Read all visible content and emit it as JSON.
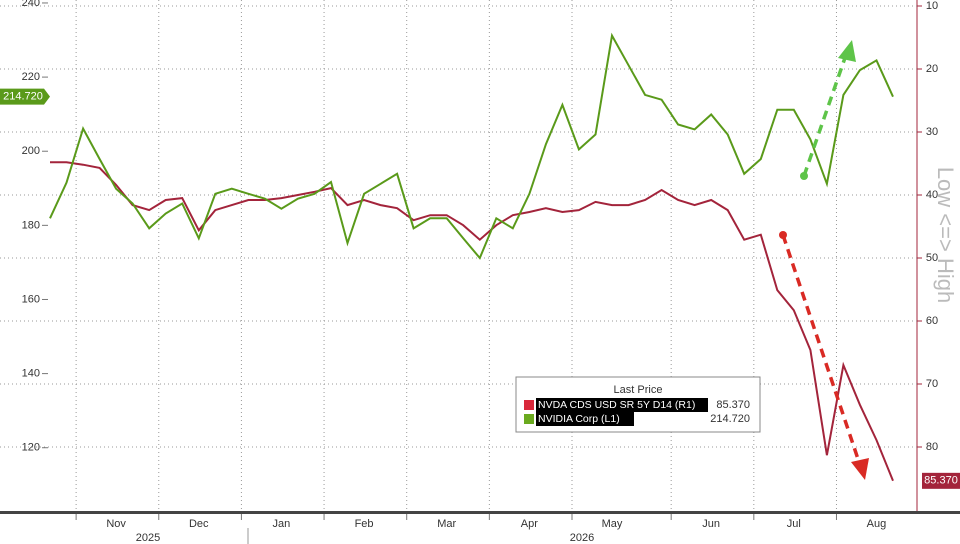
{
  "chart_data": {
    "type": "line",
    "categories": [
      null,
      null,
      null,
      null,
      "Nov",
      null,
      null,
      null,
      null,
      "Dec",
      null,
      null,
      null,
      null,
      "Jan",
      null,
      null,
      null,
      null,
      "Feb",
      null,
      null,
      null,
      null,
      "Mar",
      null,
      null,
      null,
      null,
      "Apr",
      null,
      null,
      null,
      null,
      "May",
      null,
      null,
      null,
      null,
      null,
      "Jun",
      null,
      null,
      null,
      null,
      "Jul",
      null,
      null,
      null,
      null,
      "Aug",
      null
    ],
    "x_years": [
      "2025",
      "2026"
    ],
    "series": [
      {
        "name": "NVDA CDS USD SR 5Y D14  (R1)",
        "color": "#a3243b",
        "swatch": "#d9283b",
        "axis": "y2",
        "last_value_label": "85.370",
        "values": [
          34.8,
          34.8,
          35.2,
          35.7,
          38.4,
          41.6,
          42.4,
          40.8,
          40.5,
          45.6,
          42.4,
          41.6,
          40.8,
          40.8,
          40.5,
          40.0,
          39.5,
          38.9,
          41.6,
          40.8,
          41.6,
          42.1,
          44.0,
          43.2,
          43.2,
          44.8,
          47.1,
          44.8,
          43.2,
          42.7,
          42.1,
          42.7,
          42.4,
          41.1,
          41.6,
          41.6,
          40.8,
          39.2,
          40.8,
          41.6,
          40.8,
          42.4,
          47.1,
          46.3,
          55.1,
          58.3,
          64.6,
          81.3,
          67.0,
          73.3,
          78.9,
          85.37
        ]
      },
      {
        "name": "NVIDIA Corp  (L1)",
        "color": "#5a9a1a",
        "swatch": "#6aaa1f",
        "axis": "y",
        "last_value_label": "214.720",
        "values": [
          181.9,
          191.5,
          206.1,
          197.9,
          189.9,
          185.9,
          179.2,
          183.2,
          185.9,
          176.5,
          188.5,
          189.9,
          188.5,
          187.2,
          184.5,
          187.2,
          188.5,
          191.7,
          175.2,
          188.5,
          191.2,
          193.9,
          179.2,
          181.9,
          181.9,
          176.5,
          171.2,
          181.9,
          179.2,
          188.5,
          201.9,
          212.5,
          200.5,
          204.5,
          231.2,
          223.2,
          215.2,
          213.9,
          207.2,
          205.9,
          209.9,
          204.5,
          193.9,
          197.9,
          211.2,
          211.2,
          203.2,
          191.2,
          215.2,
          221.9,
          224.5,
          214.72
        ]
      }
    ],
    "legend_title": "Last Price",
    "legend": "bottom-right",
    "y2_label": "Low <=> High",
    "ylim": [
      103.2,
      240.8
    ],
    "yticks": [
      120,
      140,
      160,
      180,
      200,
      220,
      240
    ],
    "y2lim": [
      90,
      9.05
    ],
    "y2ticks": [
      10,
      20,
      30,
      40,
      50,
      60,
      70,
      80
    ],
    "grid": true
  }
}
